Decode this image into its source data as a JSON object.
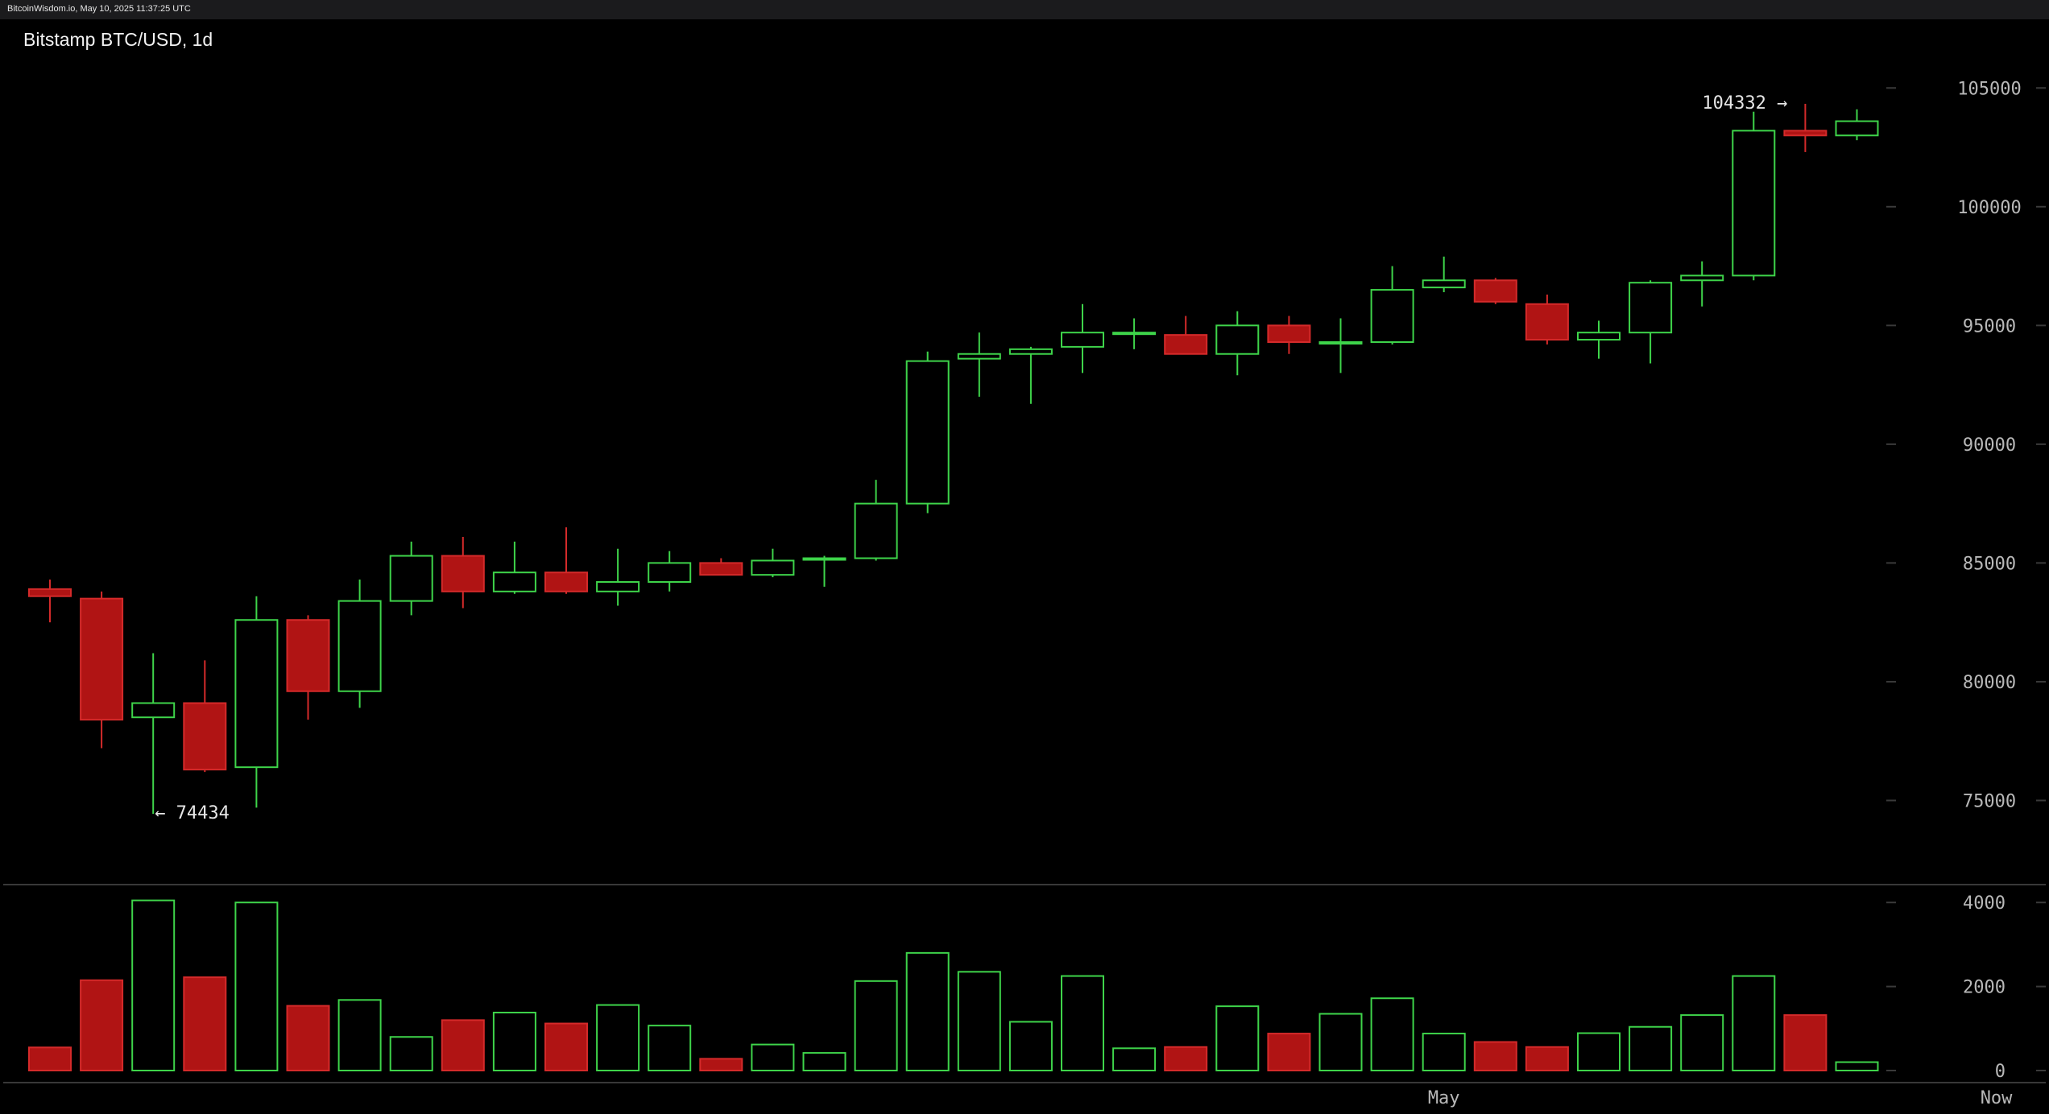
{
  "header": {
    "watermark": "BitcoinWisdom.io, May 10, 2025 11:37:25 UTC"
  },
  "chart_data": {
    "type": "candlestick",
    "title": "Bitstamp BTC/USD, 1d",
    "price_axis": {
      "ylim": [
        72000,
        106500
      ],
      "ticks": [
        75000,
        80000,
        85000,
        90000,
        95000,
        100000,
        105000
      ]
    },
    "volume_axis": {
      "ylim": [
        0,
        4100
      ],
      "ticks": [
        0,
        2000,
        4000
      ]
    },
    "x_labels": [
      {
        "label": "May",
        "index": 27
      },
      {
        "label": "Now",
        "index": 37.7
      }
    ],
    "annotations": {
      "high": {
        "text": "104332 →",
        "value": 104332,
        "index": 34
      },
      "low": {
        "text": "← 74434",
        "value": 74434,
        "index": 2
      }
    },
    "colors": {
      "up": "#3ed44a",
      "down": "#b01414",
      "down_line": "#d42a2a",
      "grid": "#3a3a3a"
    },
    "candles": [
      {
        "o": 83900,
        "h": 84300,
        "l": 82500,
        "c": 83600,
        "v": 550
      },
      {
        "o": 83500,
        "h": 83800,
        "l": 77200,
        "c": 78400,
        "v": 2150
      },
      {
        "o": 78500,
        "h": 81200,
        "l": 74434,
        "c": 79100,
        "v": 4050
      },
      {
        "o": 79100,
        "h": 80900,
        "l": 76200,
        "c": 76300,
        "v": 2220
      },
      {
        "o": 76400,
        "h": 83600,
        "l": 74700,
        "c": 82600,
        "v": 4000
      },
      {
        "o": 82600,
        "h": 82800,
        "l": 78400,
        "c": 79600,
        "v": 1540
      },
      {
        "o": 79600,
        "h": 84300,
        "l": 78900,
        "c": 83400,
        "v": 1680
      },
      {
        "o": 83400,
        "h": 85900,
        "l": 82800,
        "c": 85300,
        "v": 800
      },
      {
        "o": 85300,
        "h": 86100,
        "l": 83100,
        "c": 83800,
        "v": 1200
      },
      {
        "o": 83800,
        "h": 85900,
        "l": 83700,
        "c": 84600,
        "v": 1380
      },
      {
        "o": 84600,
        "h": 86500,
        "l": 83700,
        "c": 83800,
        "v": 1120
      },
      {
        "o": 83800,
        "h": 85600,
        "l": 83200,
        "c": 84200,
        "v": 1560
      },
      {
        "o": 84200,
        "h": 85500,
        "l": 83800,
        "c": 85000,
        "v": 1070
      },
      {
        "o": 85000,
        "h": 85200,
        "l": 84500,
        "c": 84500,
        "v": 280
      },
      {
        "o": 84500,
        "h": 85600,
        "l": 84400,
        "c": 85100,
        "v": 620
      },
      {
        "o": 85200,
        "h": 85300,
        "l": 84000,
        "c": 85200,
        "v": 420
      },
      {
        "o": 85200,
        "h": 88500,
        "l": 85100,
        "c": 87500,
        "v": 2130
      },
      {
        "o": 87500,
        "h": 93900,
        "l": 87100,
        "c": 93500,
        "v": 2800
      },
      {
        "o": 93600,
        "h": 94700,
        "l": 92000,
        "c": 93800,
        "v": 2350
      },
      {
        "o": 93800,
        "h": 94100,
        "l": 91700,
        "c": 94000,
        "v": 1160
      },
      {
        "o": 94100,
        "h": 95900,
        "l": 93000,
        "c": 94700,
        "v": 2250
      },
      {
        "o": 94700,
        "h": 95300,
        "l": 94000,
        "c": 94700,
        "v": 530
      },
      {
        "o": 94600,
        "h": 95400,
        "l": 93800,
        "c": 93800,
        "v": 560
      },
      {
        "o": 93800,
        "h": 95600,
        "l": 92900,
        "c": 95000,
        "v": 1530
      },
      {
        "o": 95000,
        "h": 95400,
        "l": 93800,
        "c": 94300,
        "v": 880
      },
      {
        "o": 94300,
        "h": 95300,
        "l": 93000,
        "c": 94300,
        "v": 1350
      },
      {
        "o": 94300,
        "h": 97500,
        "l": 94200,
        "c": 96500,
        "v": 1720
      },
      {
        "o": 96600,
        "h": 97900,
        "l": 96400,
        "c": 96900,
        "v": 880
      },
      {
        "o": 96900,
        "h": 97000,
        "l": 95900,
        "c": 96000,
        "v": 680
      },
      {
        "o": 95900,
        "h": 96300,
        "l": 94200,
        "c": 94400,
        "v": 560
      },
      {
        "o": 94400,
        "h": 95200,
        "l": 93600,
        "c": 94700,
        "v": 890
      },
      {
        "o": 94700,
        "h": 96900,
        "l": 93400,
        "c": 96800,
        "v": 1040
      },
      {
        "o": 96900,
        "h": 97700,
        "l": 95800,
        "c": 97100,
        "v": 1320
      },
      {
        "o": 97100,
        "h": 104000,
        "l": 96900,
        "c": 103200,
        "v": 2250
      },
      {
        "o": 103200,
        "h": 104332,
        "l": 102300,
        "c": 103000,
        "v": 1320
      },
      {
        "o": 103000,
        "h": 104100,
        "l": 102800,
        "c": 103600,
        "v": 200
      }
    ]
  }
}
